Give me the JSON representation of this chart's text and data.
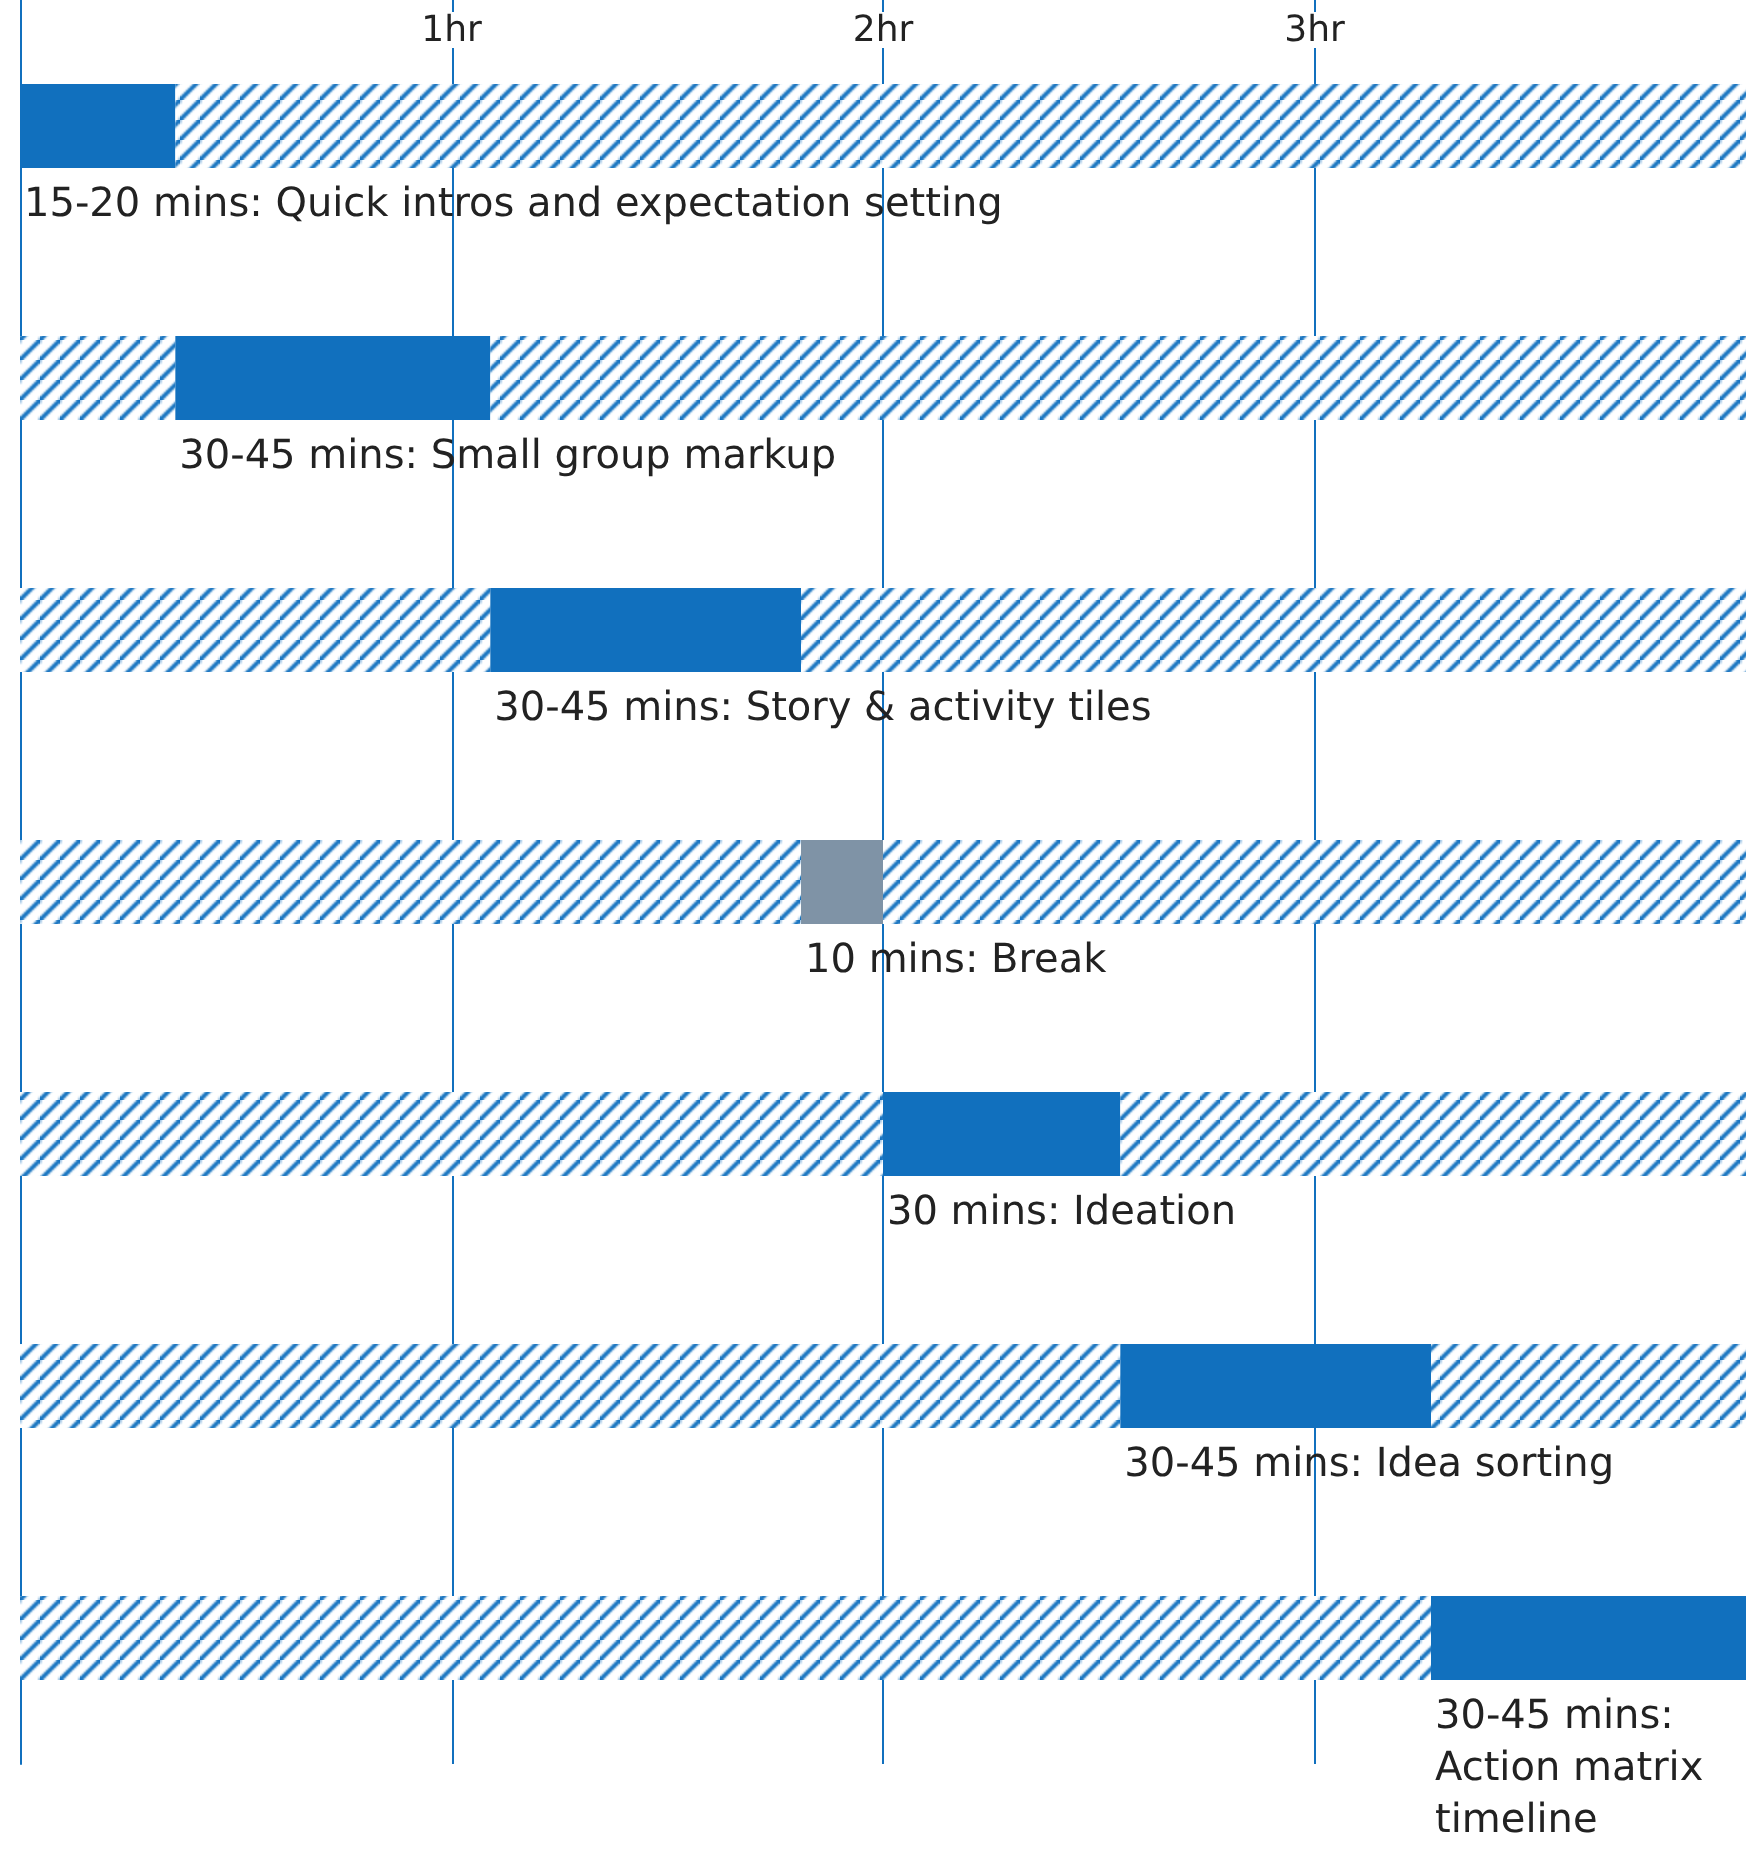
{
  "chart_data": {
    "type": "bar",
    "orientation": "horizontal",
    "stacked": true,
    "categories": [
      null,
      null,
      null,
      null,
      null,
      null,
      null
    ],
    "series": [
      {
        "color": "#1170be",
        "values": [
          0,
          0.36,
          1.09,
          1.81,
          2.0,
          2.55,
          3.27
        ]
      },
      {
        "colors": [
          "#1170be",
          "#1170be",
          "#1170be",
          "#7f93a6",
          "#1170be",
          "#1170be",
          "#1170be"
        ],
        "values": [
          0.36,
          0.73,
          0.72,
          0.19,
          0.55,
          0.72,
          0.73
        ]
      },
      {
        "color": "#1170be",
        "values": [
          3.64,
          2.91,
          2.19,
          2.0,
          1.45,
          0.73,
          0
        ]
      }
    ],
    "annotations": [
      "15-20 mins: Quick intros and expectation setting",
      "30-45 mins: Small group markup",
      "30-45 mins: Story & activity tiles",
      "10 mins: Break",
      "30 mins: Ideation",
      "30-45 mins: Idea sorting",
      "30-45 mins: Action matrix timeline"
    ],
    "xlim": [
      0,
      4
    ],
    "xticks": [
      {
        "value": 1,
        "label": "1hr"
      },
      {
        "value": 2,
        "label": "2hr"
      },
      {
        "value": 3,
        "label": "3hr"
      }
    ],
    "grid": "x"
  }
}
